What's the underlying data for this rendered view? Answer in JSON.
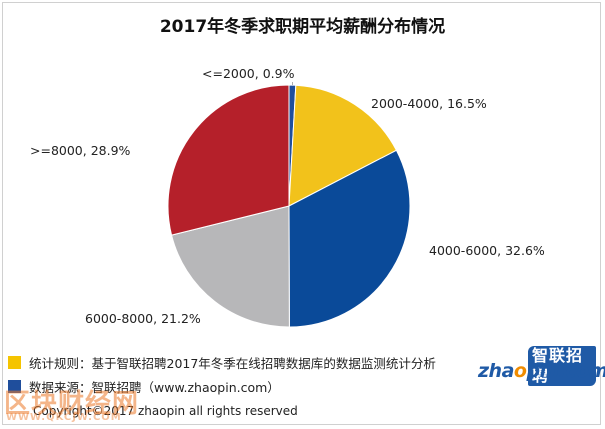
{
  "chart_data": {
    "type": "pie",
    "title": "2017年冬季求职期平均薪酬分布情况",
    "slices": [
      {
        "label": "<=2000, 0.9%",
        "category": "<=2000",
        "value": 0.9,
        "color": "#1f4e9c"
      },
      {
        "label": "2000-4000, 16.5%",
        "category": "2000-4000",
        "value": 16.5,
        "color": "#f2c21b"
      },
      {
        "label": "4000-6000, 32.6%",
        "category": "4000-6000",
        "value": 32.6,
        "color": "#0a4a99"
      },
      {
        "label": "6000-8000, 21.2%",
        "category": "6000-8000",
        "value": 21.2,
        "color": "#b7b7b9"
      },
      {
        "label": ">=8000, 28.9%",
        "category": ">=8000",
        "value": 28.9,
        "color": "#b5202a"
      }
    ]
  },
  "notes": {
    "rule_text": "统计规则：基于智联招聘2017年冬季在线招聘数据库的数据监测统计分析",
    "rule_color": "#f5c400",
    "source_text": "数据来源：智联招聘（www.zhaopin.com）",
    "source_color": "#1f4e9c"
  },
  "copyright": "Copyright©2017 zhaopin all rights reserved",
  "logo": {
    "cn": "智联招聘",
    "en_before": "zha",
    "en_o": "o",
    "en_after": "pin.com"
  },
  "watermark": {
    "main": "区块财经网",
    "sub": "WWW.QKCJW.COM"
  }
}
